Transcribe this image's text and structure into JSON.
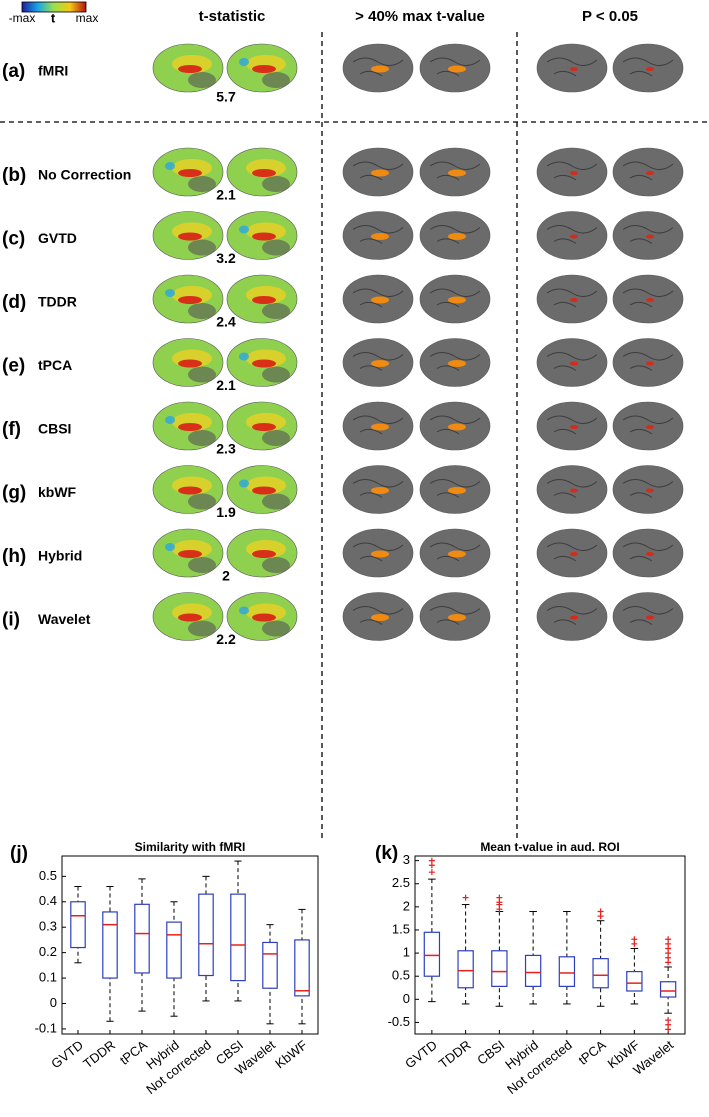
{
  "colorbar": {
    "min_label": "-max",
    "mid_label": "t",
    "max_label": "max"
  },
  "columns": [
    "t-statistic",
    "> 40% max t-value",
    "P < 0.05"
  ],
  "rows": [
    {
      "id": "(a)",
      "name": "fMRI",
      "tmax": 5.7
    },
    {
      "id": "(b)",
      "name": "No Correction",
      "tmax": 2.1
    },
    {
      "id": "(c)",
      "name": "GVTD",
      "tmax": 3.2
    },
    {
      "id": "(d)",
      "name": "TDDR",
      "tmax": 2.4
    },
    {
      "id": "(e)",
      "name": "tPCA",
      "tmax": 2.1
    },
    {
      "id": "(f)",
      "name": "CBSI",
      "tmax": 2.3
    },
    {
      "id": "(g)",
      "name": "kbWF",
      "tmax": 1.9
    },
    {
      "id": "(h)",
      "name": "Hybrid",
      "tmax": 2
    },
    {
      "id": "(i)",
      "name": "Wavelet",
      "tmax": 2.2
    }
  ],
  "chart_data": [
    {
      "type": "box",
      "panel": "(j)",
      "title": "Similarity with fMRI",
      "categories": [
        "GVTD",
        "TDDR",
        "tPCA",
        "Hybrid",
        "Not corrected",
        "CBSI",
        "Wavelet",
        "KbWF"
      ],
      "boxes": [
        {
          "whislo": 0.16,
          "q1": 0.22,
          "med": 0.345,
          "q3": 0.4,
          "whishi": 0.46,
          "outliers": []
        },
        {
          "whislo": -0.07,
          "q1": 0.1,
          "med": 0.31,
          "q3": 0.36,
          "whishi": 0.46,
          "outliers": []
        },
        {
          "whislo": -0.03,
          "q1": 0.12,
          "med": 0.275,
          "q3": 0.39,
          "whishi": 0.49,
          "outliers": []
        },
        {
          "whislo": -0.05,
          "q1": 0.1,
          "med": 0.27,
          "q3": 0.32,
          "whishi": 0.4,
          "outliers": []
        },
        {
          "whislo": 0.01,
          "q1": 0.11,
          "med": 0.235,
          "q3": 0.43,
          "whishi": 0.5,
          "outliers": []
        },
        {
          "whislo": 0.01,
          "q1": 0.09,
          "med": 0.23,
          "q3": 0.43,
          "whishi": 0.56,
          "outliers": []
        },
        {
          "whislo": -0.08,
          "q1": 0.06,
          "med": 0.195,
          "q3": 0.24,
          "whishi": 0.31,
          "outliers": []
        },
        {
          "whislo": -0.08,
          "q1": 0.03,
          "med": 0.05,
          "q3": 0.25,
          "whishi": 0.37,
          "outliers": []
        }
      ],
      "box_color": "#2c3fbf",
      "median_color": "#e8201c",
      "ylim": [
        -0.12,
        0.58
      ],
      "yticks": [
        -0.1,
        0,
        0.1,
        0.2,
        0.3,
        0.4,
        0.5
      ]
    },
    {
      "type": "box",
      "panel": "(k)",
      "title": "Mean t-value in aud. ROI",
      "categories": [
        "GVTD",
        "TDDR",
        "CBSI",
        "Hybrid",
        "Not corrected",
        "tPCA",
        "KbWF",
        "Wavelet"
      ],
      "boxes": [
        {
          "whislo": -0.05,
          "q1": 0.5,
          "med": 0.95,
          "q3": 1.45,
          "whishi": 2.6,
          "outliers": [
            2.75,
            2.9,
            3.0
          ]
        },
        {
          "whislo": -0.1,
          "q1": 0.25,
          "med": 0.62,
          "q3": 1.05,
          "whishi": 2.05,
          "outliers": [
            2.2
          ]
        },
        {
          "whislo": -0.15,
          "q1": 0.28,
          "med": 0.6,
          "q3": 1.05,
          "whishi": 1.9,
          "outliers": [
            1.95,
            2.05,
            2.1,
            2.2
          ]
        },
        {
          "whislo": -0.1,
          "q1": 0.28,
          "med": 0.58,
          "q3": 0.95,
          "whishi": 1.9,
          "outliers": []
        },
        {
          "whislo": -0.1,
          "q1": 0.28,
          "med": 0.57,
          "q3": 0.92,
          "whishi": 1.9,
          "outliers": []
        },
        {
          "whislo": -0.15,
          "q1": 0.25,
          "med": 0.52,
          "q3": 0.88,
          "whishi": 1.7,
          "outliers": [
            1.8,
            1.9
          ]
        },
        {
          "whislo": -0.1,
          "q1": 0.18,
          "med": 0.35,
          "q3": 0.6,
          "whishi": 1.1,
          "outliers": [
            1.2,
            1.3
          ]
        },
        {
          "whislo": -0.3,
          "q1": 0.05,
          "med": 0.18,
          "q3": 0.38,
          "whishi": 0.7,
          "outliers": [
            0.8,
            0.9,
            1.0,
            1.1,
            1.2,
            1.3,
            -0.45,
            -0.55,
            -0.65
          ]
        }
      ],
      "box_color": "#2c3fbf",
      "median_color": "#e8201c",
      "ylim": [
        -0.75,
        3.1
      ],
      "yticks": [
        -0.5,
        0,
        0.5,
        1,
        1.5,
        2,
        2.5,
        3
      ]
    }
  ]
}
